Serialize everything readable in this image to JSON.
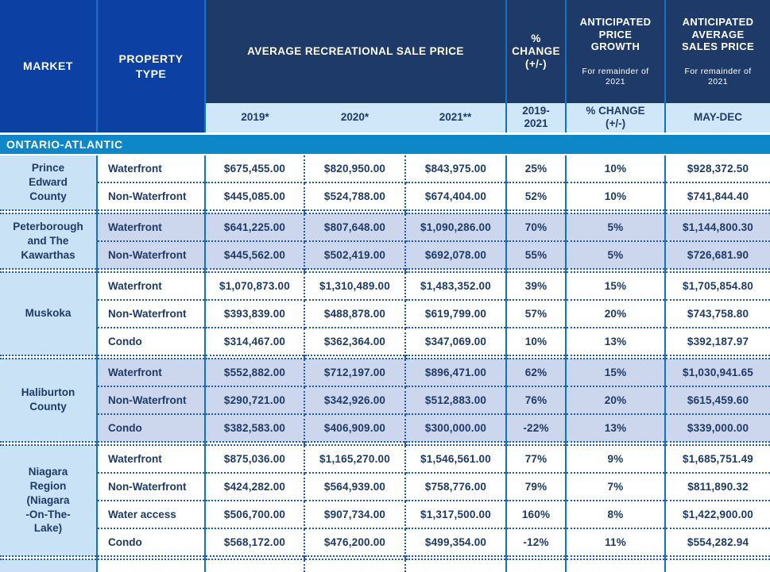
{
  "colors": {
    "header_royal_blue": "#0c41a3",
    "header_navy": "#1e3a68",
    "subheader_light_blue": "#cfe7f8",
    "section_cyan": "#0e87c9",
    "market_column_blue": "#c9e2f6",
    "alt_group_lavender": "#ccd6ec",
    "border_solid_blue": "#1272c3",
    "border_dotted_blue": "#2159ad",
    "text_navy": "#1e3a68"
  },
  "table": {
    "header": {
      "market": "MARKET",
      "property_type": "PROPERTY\nTYPE",
      "avg_price_group": "AVERAGE RECREATIONAL SALE PRICE",
      "pct_change": "%\nCHANGE\n(+/-)",
      "growth_title": "ANTICIPATED\nPRICE\nGROWTH",
      "growth_note": "For remainder of\n2021",
      "sales_title": "ANTICIPATED\nAVERAGE\nSALES PRICE",
      "sales_note": "For remainder of\n2021",
      "sub": [
        "2019*",
        "2020*",
        "2021**",
        "2019-\n2021",
        "% CHANGE\n(+/-)",
        "MAY-DEC"
      ]
    },
    "section": "ONTARIO-ATLANTIC",
    "groups": [
      {
        "market": "Prince\nEdward\nCounty",
        "rows": [
          {
            "type": "Waterfront",
            "values": [
              "$675,455.00",
              "$820,950.00",
              "$843,975.00",
              "25%",
              "10%",
              "$928,372.50"
            ]
          },
          {
            "type": "Non-Waterfront",
            "values": [
              "$445,085.00",
              "$524,788.00",
              "$674,404.00",
              "52%",
              "10%",
              "$741,844.40"
            ]
          }
        ]
      },
      {
        "market": "Peterborough\nand The\nKawarthas",
        "rows": [
          {
            "type": "Waterfront",
            "values": [
              "$641,225.00",
              "$807,648.00",
              "$1,090,286.00",
              "70%",
              "5%",
              "$1,144,800.30"
            ]
          },
          {
            "type": "Non-Waterfront",
            "values": [
              "$445,562.00",
              "$502,419.00",
              "$692,078.00",
              "55%",
              "5%",
              "$726,681.90"
            ]
          }
        ]
      },
      {
        "market": "Muskoka",
        "rows": [
          {
            "type": "Waterfront",
            "values": [
              "$1,070,873.00",
              "$1,310,489.00",
              "$1,483,352.00",
              "39%",
              "15%",
              "$1,705,854.80"
            ]
          },
          {
            "type": "Non-Waterfront",
            "values": [
              "$393,839.00",
              "$488,878.00",
              "$619,799.00",
              "57%",
              "20%",
              "$743,758.80"
            ]
          },
          {
            "type": "Condo",
            "values": [
              "$314,467.00",
              "$362,364.00",
              "$347,069.00",
              "10%",
              "13%",
              "$392,187.97"
            ]
          }
        ]
      },
      {
        "market": "Haliburton\nCounty",
        "rows": [
          {
            "type": "Waterfront",
            "values": [
              "$552,882.00",
              "$712,197.00",
              "$896,471.00",
              "62%",
              "15%",
              "$1,030,941.65"
            ]
          },
          {
            "type": "Non-Waterfront",
            "values": [
              "$290,721.00",
              "$342,926.00",
              "$512,883.00",
              "76%",
              "20%",
              "$615,459.60"
            ]
          },
          {
            "type": "Condo",
            "values": [
              "$382,583.00",
              "$406,909.00",
              "$300,000.00",
              "-22%",
              "13%",
              "$339,000.00"
            ]
          }
        ]
      },
      {
        "market": "Niagara\nRegion\n(Niagara\n-On-The-\nLake)",
        "rows": [
          {
            "type": "Waterfront",
            "values": [
              "$875,036.00",
              "$1,165,270.00",
              "$1,546,561.00",
              "77%",
              "9%",
              "$1,685,751.49"
            ]
          },
          {
            "type": "Non-Waterfront",
            "values": [
              "$424,282.00",
              "$564,939.00",
              "$758,776.00",
              "79%",
              "7%",
              "$811,890.32"
            ]
          },
          {
            "type": "Water access",
            "values": [
              "$506,700.00",
              "$907,734.00",
              "$1,317,500.00",
              "160%",
              "8%",
              "$1,422,900.00"
            ]
          },
          {
            "type": "Condo",
            "values": [
              "$568,172.00",
              "$476,200.00",
              "$499,354.00",
              "-12%",
              "11%",
              "$554,282.94"
            ]
          }
        ]
      }
    ]
  },
  "chart_data": {
    "type": "table",
    "section": "ONTARIO-ATLANTIC",
    "columns": [
      "MARKET",
      "PROPERTY TYPE",
      "AVERAGE RECREATIONAL SALE PRICE 2019*",
      "AVERAGE RECREATIONAL SALE PRICE 2020*",
      "AVERAGE RECREATIONAL SALE PRICE 2021**",
      "% CHANGE (+/-) 2019-2021",
      "ANTICIPATED PRICE GROWTH % CHANGE (+/-) (For remainder of 2021)",
      "ANTICIPATED AVERAGE SALES PRICE MAY-DEC (For remainder of 2021)"
    ],
    "rows": [
      [
        "Prince Edward County",
        "Waterfront",
        "$675,455.00",
        "$820,950.00",
        "$843,975.00",
        "25%",
        "10%",
        "$928,372.50"
      ],
      [
        "Prince Edward County",
        "Non-Waterfront",
        "$445,085.00",
        "$524,788.00",
        "$674,404.00",
        "52%",
        "10%",
        "$741,844.40"
      ],
      [
        "Peterborough and The Kawarthas",
        "Waterfront",
        "$641,225.00",
        "$807,648.00",
        "$1,090,286.00",
        "70%",
        "5%",
        "$1,144,800.30"
      ],
      [
        "Peterborough and The Kawarthas",
        "Non-Waterfront",
        "$445,562.00",
        "$502,419.00",
        "$692,078.00",
        "55%",
        "5%",
        "$726,681.90"
      ],
      [
        "Muskoka",
        "Waterfront",
        "$1,070,873.00",
        "$1,310,489.00",
        "$1,483,352.00",
        "39%",
        "15%",
        "$1,705,854.80"
      ],
      [
        "Muskoka",
        "Non-Waterfront",
        "$393,839.00",
        "$488,878.00",
        "$619,799.00",
        "57%",
        "20%",
        "$743,758.80"
      ],
      [
        "Muskoka",
        "Condo",
        "$314,467.00",
        "$362,364.00",
        "$347,069.00",
        "10%",
        "13%",
        "$392,187.97"
      ],
      [
        "Haliburton County",
        "Waterfront",
        "$552,882.00",
        "$712,197.00",
        "$896,471.00",
        "62%",
        "15%",
        "$1,030,941.65"
      ],
      [
        "Haliburton County",
        "Non-Waterfront",
        "$290,721.00",
        "$342,926.00",
        "$512,883.00",
        "76%",
        "20%",
        "$615,459.60"
      ],
      [
        "Haliburton County",
        "Condo",
        "$382,583.00",
        "$406,909.00",
        "$300,000.00",
        "-22%",
        "13%",
        "$339,000.00"
      ],
      [
        "Niagara Region (Niagara-On-The-Lake)",
        "Waterfront",
        "$875,036.00",
        "$1,165,270.00",
        "$1,546,561.00",
        "77%",
        "9%",
        "$1,685,751.49"
      ],
      [
        "Niagara Region (Niagara-On-The-Lake)",
        "Non-Waterfront",
        "$424,282.00",
        "$564,939.00",
        "$758,776.00",
        "79%",
        "7%",
        "$811,890.32"
      ],
      [
        "Niagara Region (Niagara-On-The-Lake)",
        "Water access",
        "$506,700.00",
        "$907,734.00",
        "$1,317,500.00",
        "160%",
        "8%",
        "$1,422,900.00"
      ],
      [
        "Niagara Region (Niagara-On-The-Lake)",
        "Condo",
        "$568,172.00",
        "$476,200.00",
        "$499,354.00",
        "-12%",
        "11%",
        "$554,282.94"
      ]
    ]
  }
}
